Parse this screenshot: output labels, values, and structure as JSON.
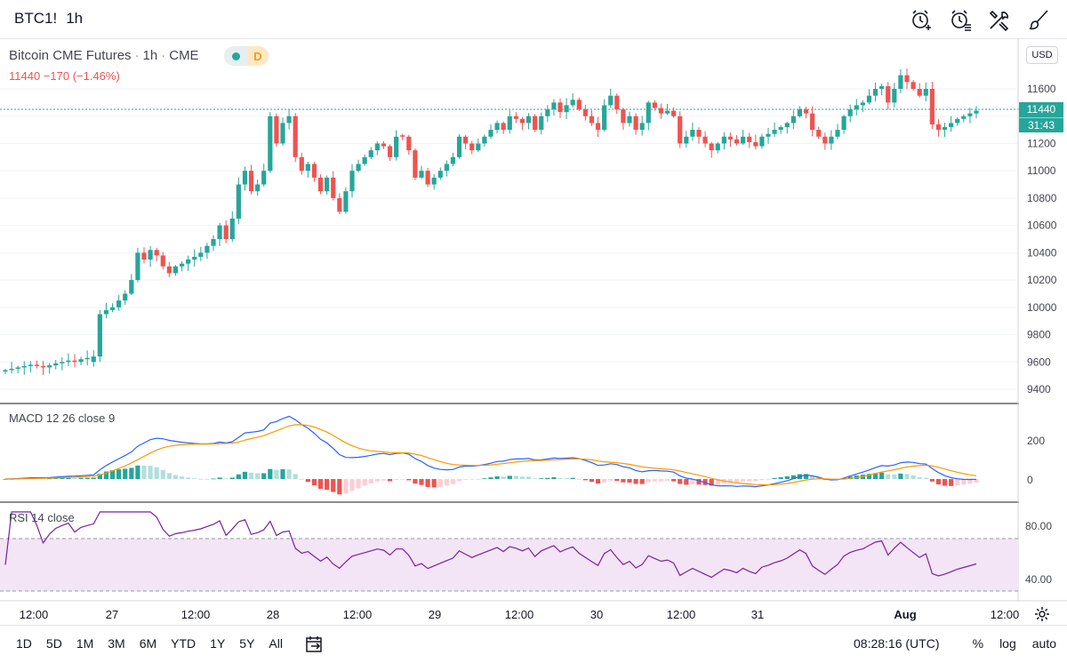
{
  "header": {
    "symbol": "BTC1!",
    "interval": "1h",
    "icons": [
      "alarm-add-icon",
      "alarm-list-icon",
      "tools-icon",
      "brush-icon"
    ]
  },
  "legend": {
    "name": "Bitcoin CME Futures",
    "interval": "1h",
    "exchange": "CME",
    "badge": "D",
    "price_change": "11440 −170 (−1.46%)"
  },
  "price_axis": {
    "currency": "USD",
    "last_price": "11440",
    "countdown": "31:43",
    "ticks": [
      "11600",
      "11400",
      "11200",
      "11000",
      "10800",
      "10600",
      "10400",
      "10200",
      "10000",
      "9800",
      "9600",
      "9400"
    ]
  },
  "macd": {
    "label": "MACD 12 26 close 9",
    "ticks": [
      "200",
      "0"
    ]
  },
  "rsi": {
    "label": "RSI 14 close",
    "ticks": [
      "80.00",
      "40.00"
    ]
  },
  "time_axis": [
    "12:00",
    "27",
    "12:00",
    "28",
    "12:00",
    "29",
    "12:00",
    "30",
    "12:00",
    "31",
    "Aug",
    "12:00"
  ],
  "bottom": {
    "ranges": [
      "1D",
      "5D",
      "1M",
      "3M",
      "6M",
      "YTD",
      "1Y",
      "5Y",
      "All"
    ],
    "clock": "08:28:16 (UTC)",
    "options": [
      "%",
      "log",
      "auto"
    ]
  },
  "colors": {
    "up": "#26a69a",
    "down": "#ef5350",
    "macd_line": "#2962ff",
    "signal_line": "#ff9800",
    "rsi_line": "#7b1fa2",
    "rsi_band": "#f3e5f5"
  },
  "chart_data": {
    "type": "candlestick",
    "timeframe": "1h",
    "ylim": [
      9300,
      11800
    ],
    "last_price": 11440,
    "closes": [
      9540,
      9550,
      9560,
      9570,
      9580,
      9570,
      9560,
      9575,
      9590,
      9600,
      9610,
      9600,
      9620,
      9630,
      9640,
      9950,
      9980,
      10000,
      10050,
      10100,
      10200,
      10400,
      10350,
      10420,
      10380,
      10300,
      10250,
      10300,
      10320,
      10350,
      10370,
      10400,
      10450,
      10500,
      10600,
      10500,
      10650,
      10900,
      11000,
      10850,
      10900,
      11000,
      11400,
      11200,
      11350,
      11400,
      11100,
      11000,
      11050,
      10950,
      10850,
      10950,
      10800,
      10700,
      10850,
      11000,
      11050,
      11100,
      11150,
      11200,
      11180,
      11100,
      11250,
      11250,
      11150,
      10950,
      11000,
      10900,
      10950,
      11000,
      11050,
      11100,
      11250,
      11200,
      11150,
      11200,
      11250,
      11300,
      11350,
      11300,
      11400,
      11380,
      11350,
      11400,
      11300,
      11400,
      11450,
      11500,
      11430,
      11480,
      11520,
      11450,
      11400,
      11350,
      11300,
      11480,
      11550,
      11450,
      11350,
      11400,
      11300,
      11350,
      11500,
      11460,
      11420,
      11440,
      11400,
      11200,
      11250,
      11300,
      11250,
      11200,
      11150,
      11200,
      11250,
      11230,
      11200,
      11250,
      11210,
      11180,
      11250,
      11270,
      11300,
      11320,
      11350,
      11400,
      11450,
      11420,
      11300,
      11250,
      11200,
      11250,
      11300,
      11400,
      11450,
      11480,
      11500,
      11550,
      11600,
      11620,
      11500,
      11600,
      11700,
      11650,
      11600,
      11550,
      11600,
      11340,
      11300,
      11320,
      11350,
      11380,
      11400,
      11420,
      11440
    ]
  }
}
